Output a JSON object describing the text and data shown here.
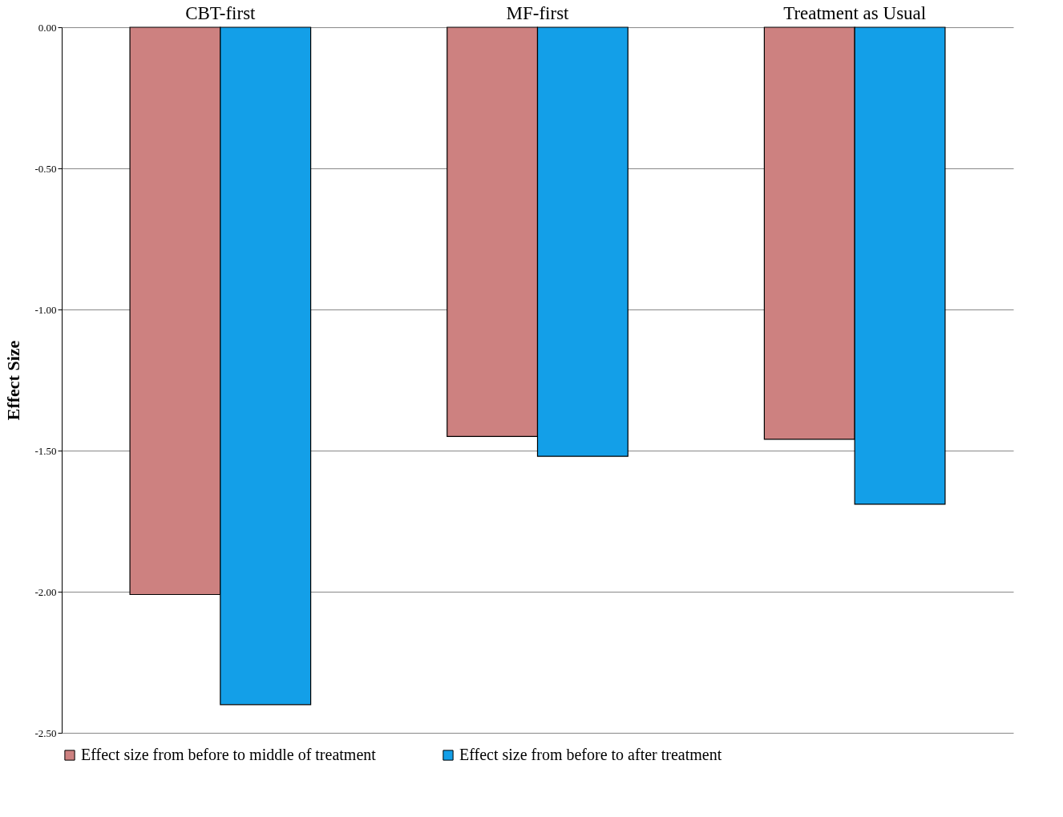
{
  "chart_data": {
    "type": "bar",
    "ylabel": "Effect Size",
    "categories": [
      "CBT-first",
      "MF-first",
      "Treatment as Usual"
    ],
    "series": [
      {
        "name": "Effect size from before to middle of treatment",
        "color": "#cd8180",
        "values": [
          -2.01,
          -1.45,
          -1.46
        ]
      },
      {
        "name": "Effect size from before to after treatment",
        "color": "#139fe8",
        "values": [
          -2.4,
          -1.52,
          -1.69
        ]
      }
    ],
    "ylim": [
      -2.5,
      0
    ],
    "yticks": [
      {
        "value": 0,
        "label": "0.00"
      },
      {
        "value": -0.5,
        "label": "-0.50"
      },
      {
        "value": -1,
        "label": "-1.00"
      },
      {
        "value": -1.5,
        "label": "-1.50"
      },
      {
        "value": -2,
        "label": "-2.00"
      },
      {
        "value": -2.5,
        "label": "-2.50"
      }
    ],
    "grid": "y",
    "legend": "bottom"
  }
}
